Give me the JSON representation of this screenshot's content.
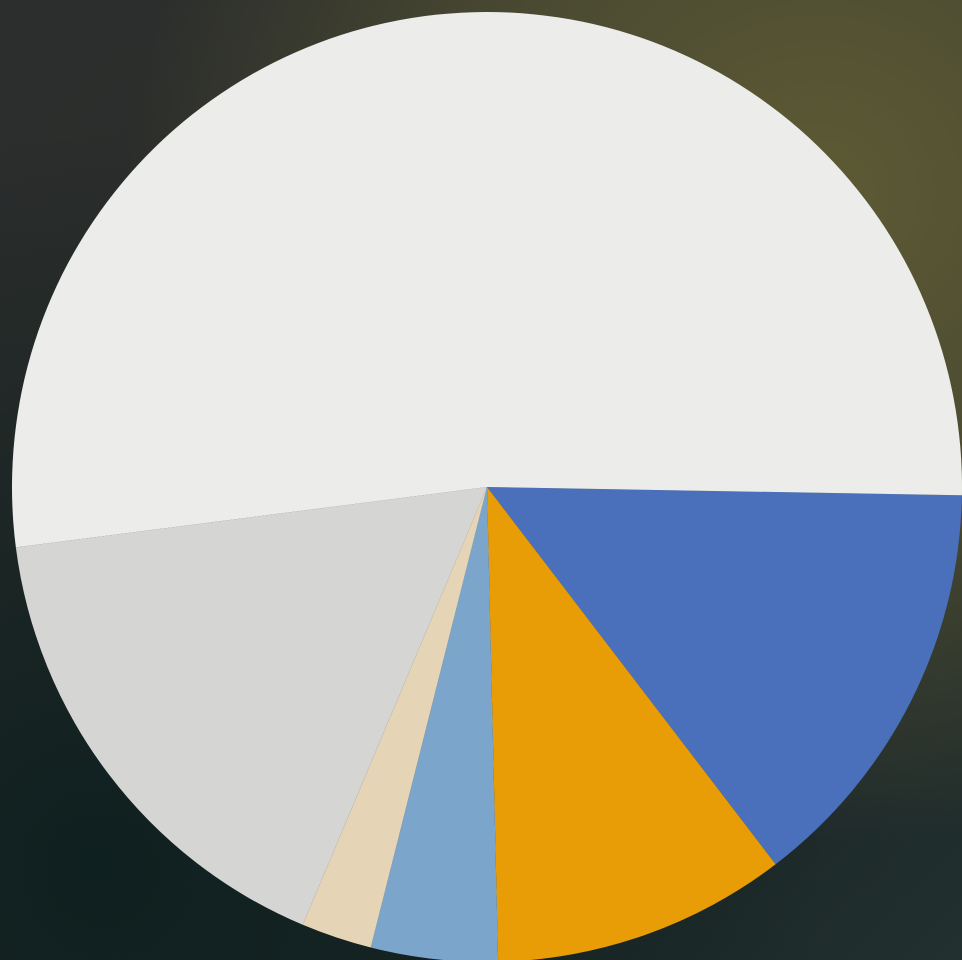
{
  "chart_data": {
    "type": "pie",
    "values": [
      14.3,
      10,
      4.3,
      2.4,
      16.6,
      52.2
    ],
    "colors": [
      "#4a6fbb",
      "#e89c06",
      "#7ba5cb",
      "#e6d4b6",
      "#d5d6d3",
      "#ecedea"
    ],
    "startangle": 1
  }
}
